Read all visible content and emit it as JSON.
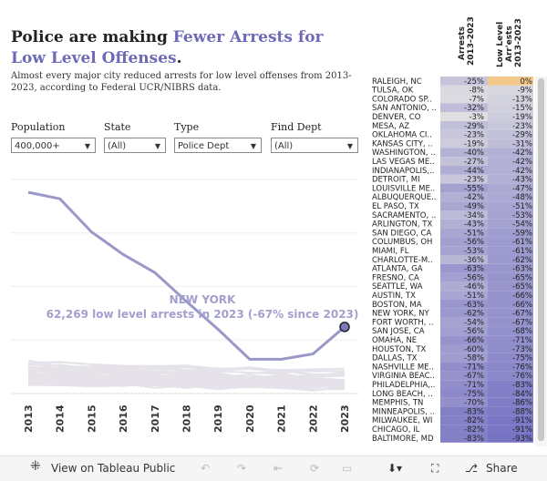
{
  "title": {
    "prefix": "Police are making ",
    "highlight": "Fewer Arrests for Low Level Offenses",
    "suffix": "."
  },
  "subtitle": "Almost every major city reduced arrests for low level offenses from 2013-2023, according to Federal UCR/NIBRS data.",
  "filters": [
    {
      "label": "Population",
      "value": "400,000+"
    },
    {
      "label": "State",
      "value": "(All)"
    },
    {
      "label": "Type",
      "value": "Police Dept"
    },
    {
      "label": "Find Dept",
      "value": "(All)"
    }
  ],
  "colors": {
    "accent": "#6e6ab8",
    "highlight_line": "#9a98c9",
    "other_lines": "#e6e2ea"
  },
  "chart_data": {
    "type": "line",
    "x": [
      2013,
      2014,
      2015,
      2016,
      2017,
      2018,
      2019,
      2020,
      2021,
      2022,
      2023
    ],
    "highlight_series": {
      "name": "NEW YORK",
      "values": [
        188000,
        182000,
        151000,
        130000,
        113000,
        86000,
        60000,
        32000,
        32000,
        37000,
        62269
      ]
    },
    "other_series_count": 40,
    "annotation": {
      "title": "NEW YORK",
      "text": "62,269 low level arrests in 2023 (-67% since 2023)"
    },
    "ylim": [
      0,
      200000
    ],
    "grid": true
  },
  "table": {
    "col_headers": [
      "Arrests 2013-2023",
      "Low Level Arr'ests 2013-2023"
    ],
    "rows": [
      {
        "city": "RALEIGH, NC",
        "arrests": "-25%",
        "low": "0%"
      },
      {
        "city": "TULSA, OK",
        "arrests": "-8%",
        "low": "-9%"
      },
      {
        "city": "COLORADO SP..",
        "arrests": "-7%",
        "low": "-13%"
      },
      {
        "city": "SAN ANTONIO, ..",
        "arrests": "-32%",
        "low": "-15%"
      },
      {
        "city": "DENVER, CO",
        "arrests": "-3%",
        "low": "-19%"
      },
      {
        "city": "MESA, AZ",
        "arrests": "-29%",
        "low": "-23%"
      },
      {
        "city": "OKLAHOMA CI..",
        "arrests": "-23%",
        "low": "-29%"
      },
      {
        "city": "KANSAS CITY, ..",
        "arrests": "-19%",
        "low": "-31%"
      },
      {
        "city": "WASHINGTON, ..",
        "arrests": "-40%",
        "low": "-42%"
      },
      {
        "city": "LAS VEGAS ME..",
        "arrests": "-27%",
        "low": "-42%"
      },
      {
        "city": "INDIANAPOLIS,..",
        "arrests": "-44%",
        "low": "-42%"
      },
      {
        "city": "DETROIT, MI",
        "arrests": "-23%",
        "low": "-43%"
      },
      {
        "city": "LOUISVILLE ME..",
        "arrests": "-55%",
        "low": "-47%"
      },
      {
        "city": "ALBUQUERQUE..",
        "arrests": "-42%",
        "low": "-48%"
      },
      {
        "city": "EL PASO, TX",
        "arrests": "-49%",
        "low": "-51%"
      },
      {
        "city": "SACRAMENTO, ..",
        "arrests": "-34%",
        "low": "-53%"
      },
      {
        "city": "ARLINGTON, TX",
        "arrests": "-43%",
        "low": "-54%"
      },
      {
        "city": "SAN DIEGO, CA",
        "arrests": "-51%",
        "low": "-59%"
      },
      {
        "city": "COLUMBUS, OH",
        "arrests": "-56%",
        "low": "-61%"
      },
      {
        "city": "MIAMI, FL",
        "arrests": "-53%",
        "low": "-61%"
      },
      {
        "city": "CHARLOTTE-M..",
        "arrests": "-36%",
        "low": "-62%"
      },
      {
        "city": "ATLANTA, GA",
        "arrests": "-63%",
        "low": "-63%"
      },
      {
        "city": "FRESNO, CA",
        "arrests": "-56%",
        "low": "-65%"
      },
      {
        "city": "SEATTLE, WA",
        "arrests": "-46%",
        "low": "-65%"
      },
      {
        "city": "AUSTIN, TX",
        "arrests": "-51%",
        "low": "-66%"
      },
      {
        "city": "BOSTON, MA",
        "arrests": "-63%",
        "low": "-66%"
      },
      {
        "city": "NEW YORK, NY",
        "arrests": "-62%",
        "low": "-67%"
      },
      {
        "city": "FORT WORTH, ..",
        "arrests": "-54%",
        "low": "-67%"
      },
      {
        "city": "SAN JOSE, CA",
        "arrests": "-56%",
        "low": "-68%"
      },
      {
        "city": "OMAHA, NE",
        "arrests": "-66%",
        "low": "-71%"
      },
      {
        "city": "HOUSTON, TX",
        "arrests": "-60%",
        "low": "-73%"
      },
      {
        "city": "DALLAS, TX",
        "arrests": "-58%",
        "low": "-75%"
      },
      {
        "city": "NASHVILLE ME..",
        "arrests": "-71%",
        "low": "-76%"
      },
      {
        "city": "VIRGINIA BEAC..",
        "arrests": "-67%",
        "low": "-76%"
      },
      {
        "city": "PHILADELPHIA,..",
        "arrests": "-71%",
        "low": "-83%"
      },
      {
        "city": "LONG BEACH, ..",
        "arrests": "-75%",
        "low": "-84%"
      },
      {
        "city": "MEMPHIS, TN",
        "arrests": "-70%",
        "low": "-86%"
      },
      {
        "city": "MINNEAPOLIS, ..",
        "arrests": "-83%",
        "low": "-88%"
      },
      {
        "city": "MILWAUKEE, WI",
        "arrests": "-82%",
        "low": "-91%"
      },
      {
        "city": "CHICAGO, IL",
        "arrests": "-82%",
        "low": "-91%"
      },
      {
        "city": "BALTIMORE, MD",
        "arrests": "-83%",
        "low": "-93%"
      }
    ]
  },
  "toolbar": {
    "view_label": "View on Tableau Public",
    "share_label": "Share"
  }
}
